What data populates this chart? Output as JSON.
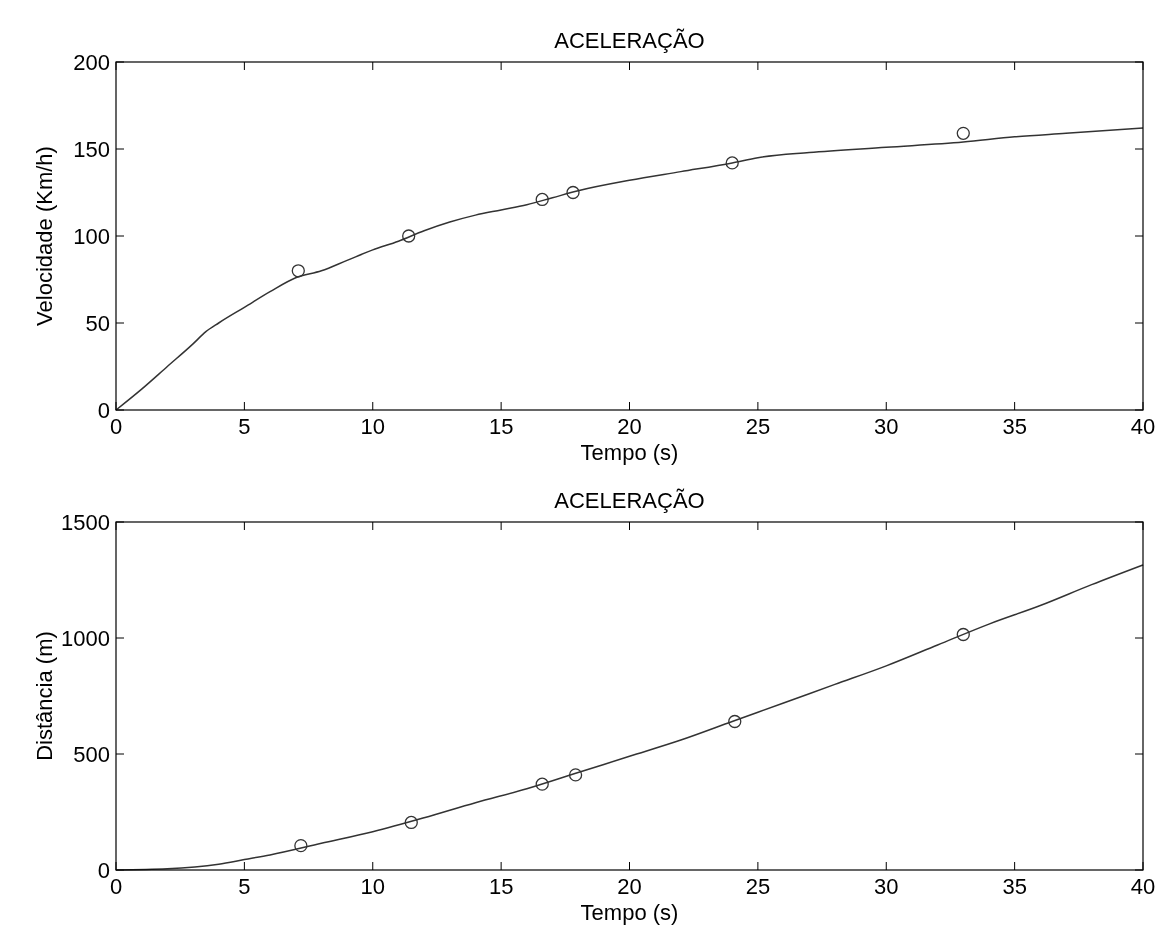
{
  "chart_data": [
    {
      "type": "line",
      "title": "ACELERAÇÃO",
      "xlabel": "Tempo (s)",
      "ylabel": "Velocidade (Km/h)",
      "xlim": [
        0,
        40
      ],
      "ylim": [
        0,
        200
      ],
      "xticks": [
        0,
        5,
        10,
        15,
        20,
        25,
        30,
        35,
        40
      ],
      "yticks": [
        0,
        50,
        100,
        150,
        200
      ],
      "grid": false,
      "series": [
        {
          "color": "#333333",
          "x": [
            0,
            1,
            2,
            3,
            3.5,
            4,
            5,
            6,
            7,
            8,
            9,
            10,
            11,
            12,
            13,
            14,
            15,
            16,
            17,
            18,
            20,
            22,
            24,
            25,
            27,
            30,
            33,
            35,
            37,
            40
          ],
          "values": [
            0,
            12,
            25,
            38,
            45,
            50,
            59,
            68,
            76,
            80,
            86,
            92,
            97,
            103,
            108,
            112,
            115,
            118,
            122,
            126,
            132,
            137,
            142,
            145,
            148,
            151,
            154,
            157,
            159,
            162
          ]
        },
        {
          "type": "scatter",
          "color": "#333333",
          "marker": "circle",
          "x": [
            7.1,
            11.4,
            16.6,
            17.8,
            24,
            33
          ],
          "values": [
            80,
            100,
            121,
            125,
            142,
            159
          ]
        }
      ]
    },
    {
      "type": "line",
      "title": "ACELERAÇÃO",
      "xlabel": "Tempo (s)",
      "ylabel": "Distância (m)",
      "xlim": [
        0,
        40
      ],
      "ylim": [
        0,
        1500
      ],
      "xticks": [
        0,
        5,
        10,
        15,
        20,
        25,
        30,
        35,
        40
      ],
      "yticks": [
        0,
        500,
        1000,
        1500
      ],
      "grid": false,
      "series": [
        {
          "color": "#333333",
          "x": [
            0,
            2,
            4,
            5,
            6,
            8,
            10,
            12,
            14,
            16,
            18,
            20,
            22,
            24,
            26,
            28,
            30,
            32,
            34,
            36,
            38,
            40
          ],
          "values": [
            0,
            5,
            25,
            45,
            65,
            115,
            165,
            225,
            290,
            350,
            420,
            490,
            560,
            640,
            720,
            800,
            880,
            970,
            1060,
            1140,
            1230,
            1315
          ]
        },
        {
          "type": "scatter",
          "color": "#333333",
          "marker": "circle",
          "x": [
            7.2,
            11.5,
            16.6,
            17.9,
            24.1,
            33
          ],
          "values": [
            105,
            205,
            370,
            410,
            640,
            1015
          ]
        }
      ]
    }
  ]
}
